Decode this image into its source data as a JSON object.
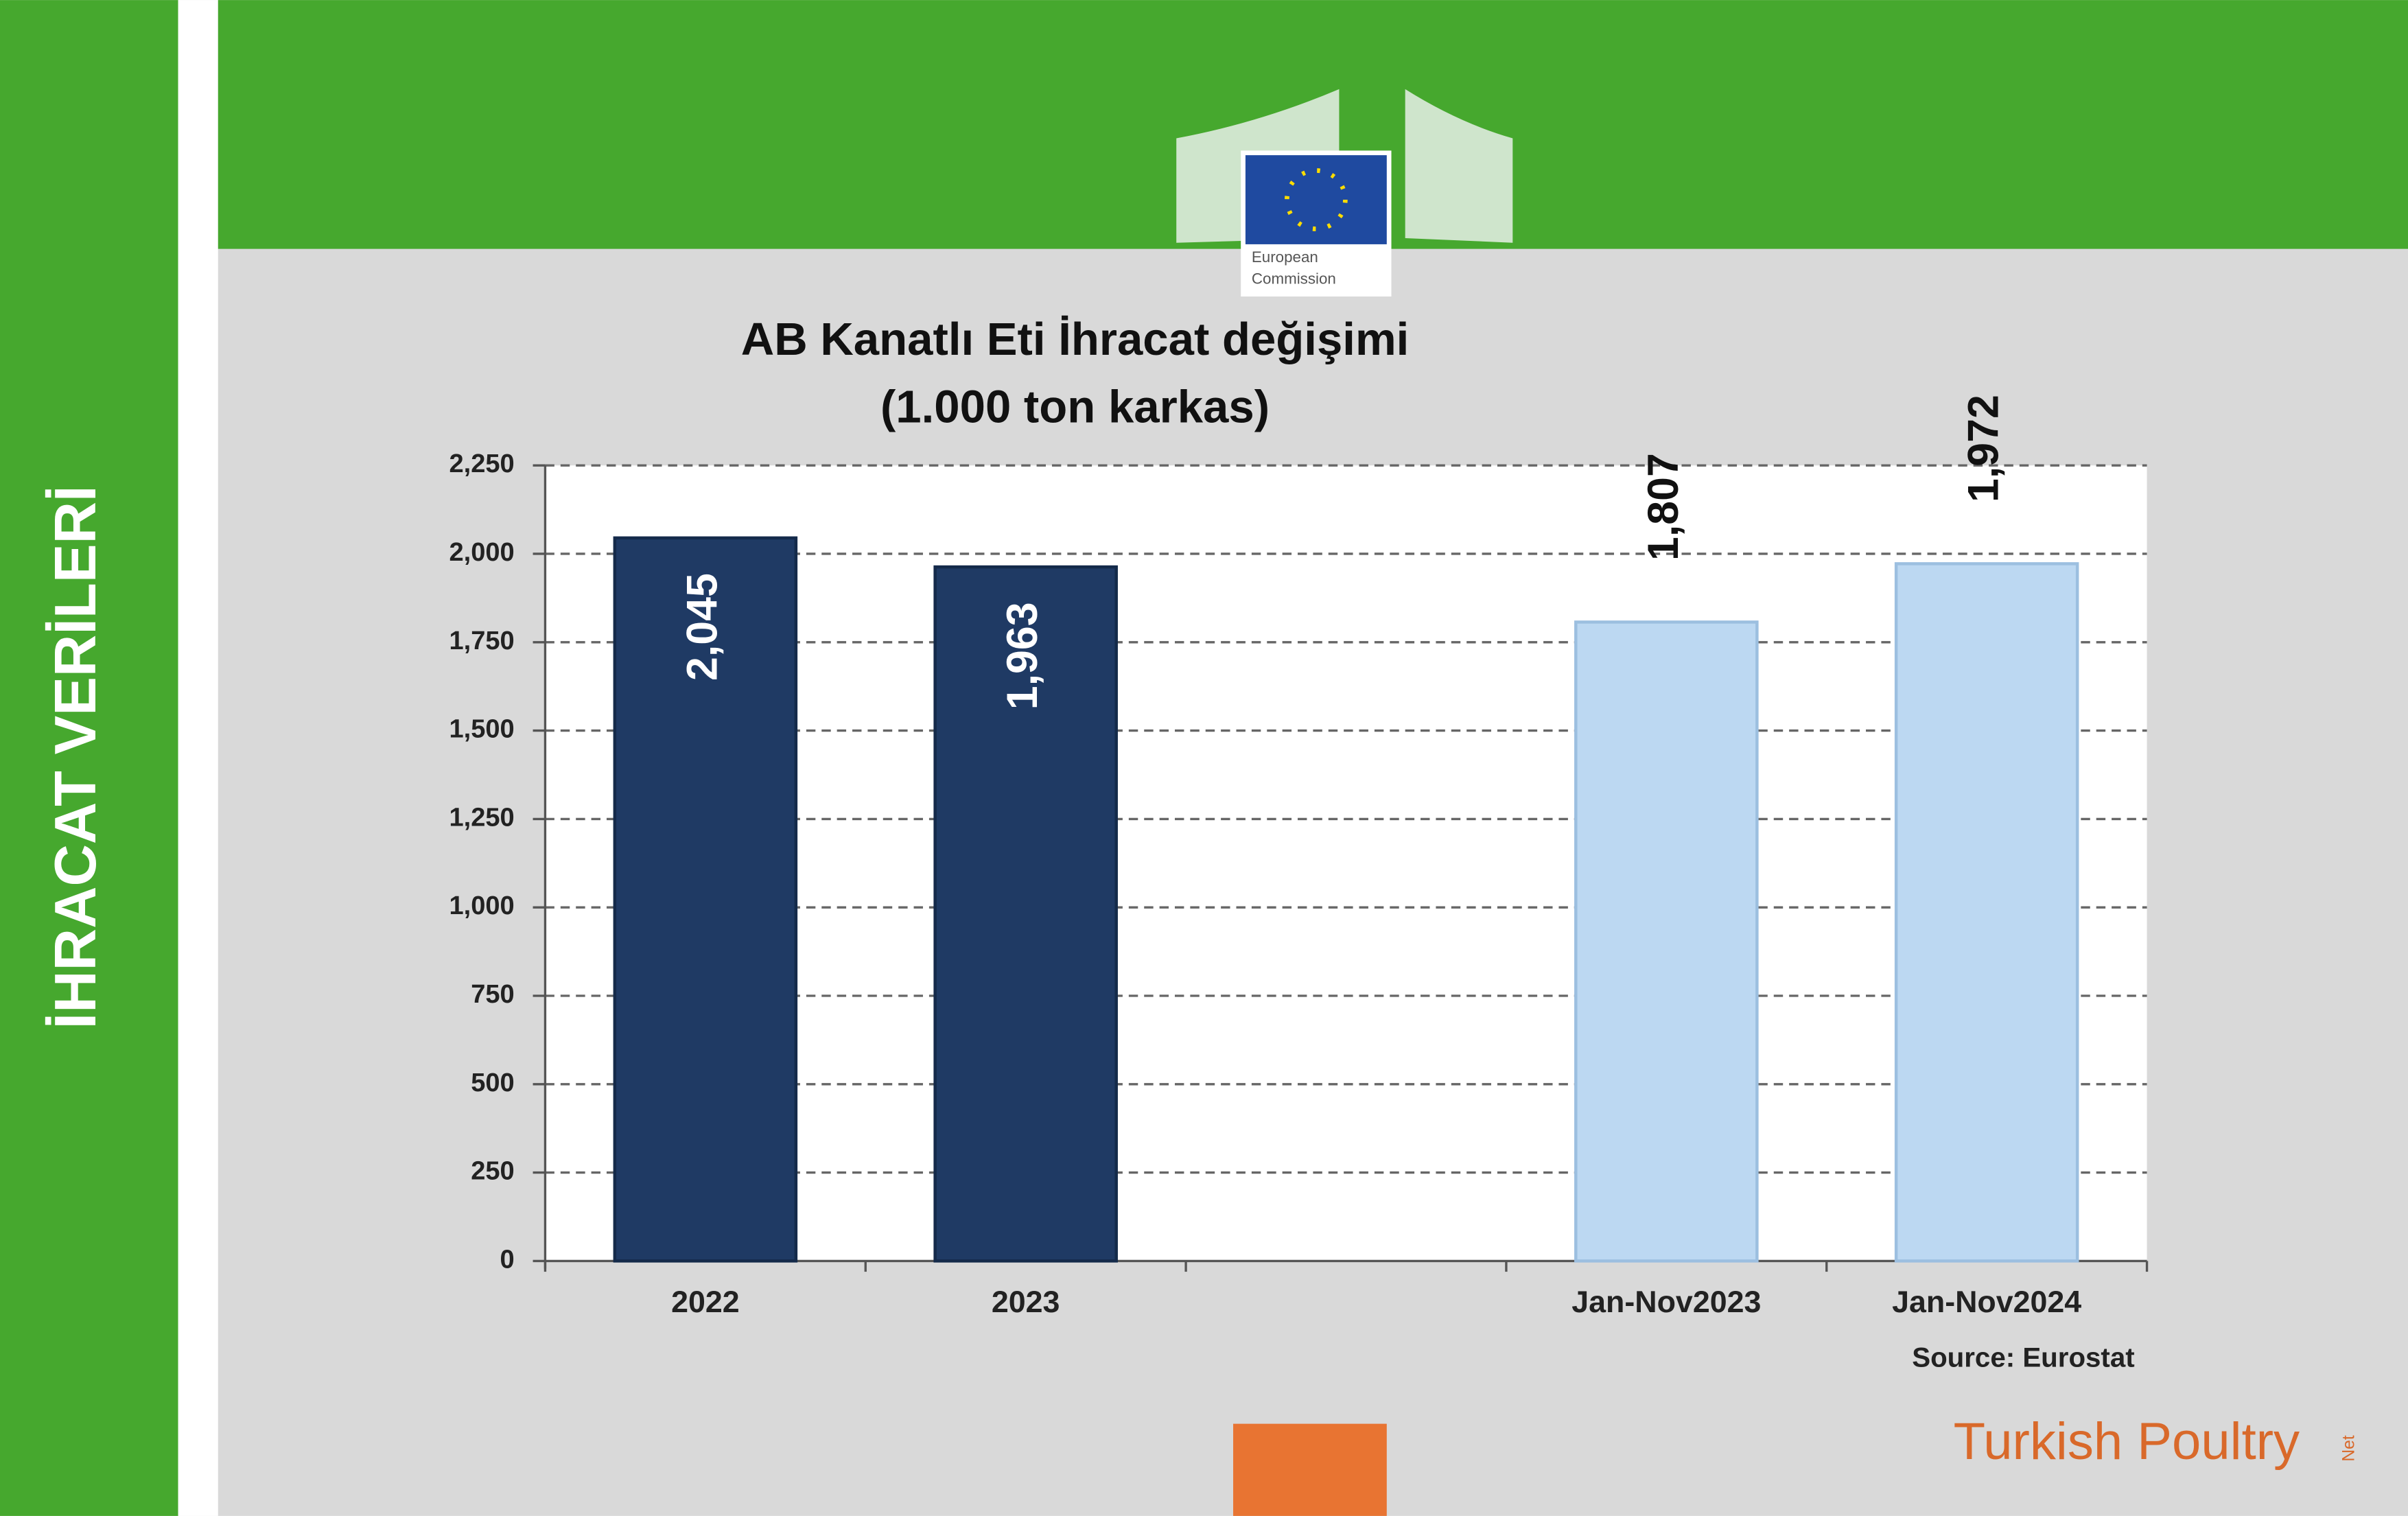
{
  "side_label": "İHRACAT VERİLERİ",
  "logo": {
    "line1": "European",
    "line2": "Commission"
  },
  "brand": {
    "name": "Turkish Poultry",
    "suffix": "Net"
  },
  "chart_data": {
    "type": "bar",
    "title": "AB Kanatlı Eti İhracat değişimi",
    "subtitle": "(1.000 ton karkas)",
    "source": "Source: Eurostat",
    "categories": [
      "2022",
      "2023",
      null,
      "Jan-Nov2023",
      "Jan-Nov2024"
    ],
    "values": [
      2045,
      1963,
      null,
      1807,
      1972
    ],
    "value_labels": [
      "2,045",
      "1,963",
      null,
      "1,807",
      "1,972"
    ],
    "colors": [
      "#1f3a64",
      "#1f3a64",
      null,
      "#bcd8f2",
      "#bcd8f2"
    ],
    "ylim": [
      0,
      2250
    ],
    "yticks": [
      0,
      250,
      500,
      750,
      {
        "value": 1000,
        "label": "1,000"
      },
      {
        "value": 1250,
        "label": "1,250"
      },
      {
        "value": 1500,
        "label": "1,500"
      },
      {
        "value": 1750,
        "label": "1,750"
      },
      {
        "value": 2000,
        "label": "2,000"
      },
      {
        "value": 2250,
        "label": "2,250"
      }
    ],
    "grid": true
  }
}
